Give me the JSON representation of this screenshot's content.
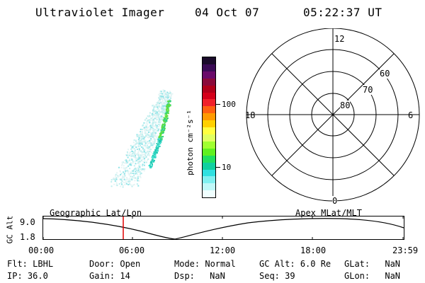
{
  "header": {
    "instrument": "Ultraviolet Imager",
    "date": "04 Oct 07",
    "time": "05:22:37 UT"
  },
  "colorbar": {
    "unit_label": "photon cm⁻²s⁻¹",
    "ticks": [
      "100",
      "10"
    ],
    "colors": [
      "#1a0a2a",
      "#3a0a55",
      "#6a0a6a",
      "#8a0a3a",
      "#b0001a",
      "#d4001a",
      "#f0202a",
      "#ff6010",
      "#ff9a00",
      "#ffd000",
      "#ffff40",
      "#e0ff60",
      "#a0ff30",
      "#60f020",
      "#20e060",
      "#10d0a0",
      "#30e0e0",
      "#80f0f0",
      "#c0f8f8",
      "#f0ffff"
    ]
  },
  "polar_plot": {
    "mlt_labels": {
      "top": "12",
      "left": "18",
      "right": "6",
      "bottom": "0"
    },
    "lat_labels": [
      "60",
      "70",
      "80"
    ]
  },
  "timeline": {
    "axis_label": "GC Alt",
    "y_labels": [
      "9.0",
      "1.8"
    ],
    "left_title": "Geographic Lat/Lon",
    "right_title": "Apex  MLat/MLT",
    "time_ticks": [
      "00:00",
      "06:00",
      "12:00",
      "18:00",
      "23:59"
    ]
  },
  "info": {
    "row1": [
      {
        "label": "Flt:",
        "value": "LBHL"
      },
      {
        "label": "Door:",
        "value": "Open"
      },
      {
        "label": "Mode:",
        "value": "Normal"
      },
      {
        "label": "GC Alt:",
        "value": "6.0 Re"
      },
      {
        "label": "GLat:",
        "value": "NaN"
      }
    ],
    "row2": [
      {
        "label": "IP:",
        "value": "36.0"
      },
      {
        "label": "Gain:",
        "value": "14"
      },
      {
        "label": "Dsp:",
        "value": "NaN"
      },
      {
        "label": "Seq:",
        "value": "39"
      },
      {
        "label": "GLon:",
        "value": "NaN"
      }
    ]
  }
}
